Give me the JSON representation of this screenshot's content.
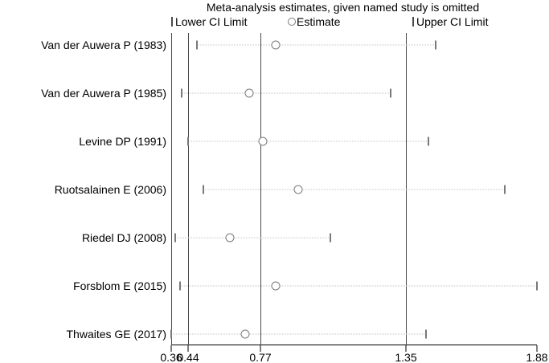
{
  "figure": {
    "legend": {
      "lower": "Lower CI Limit",
      "estimate": "Estimate",
      "upper": "Upper CI Limit"
    }
  },
  "chart_data": {
    "type": "scatter",
    "subtype": "meta-analysis leave-one-out sensitivity plot (estimate with CI limit ticks per omitted study)",
    "title": "Meta-analysis estimates, given named study is omitted",
    "xlabel": "",
    "ylabel": "",
    "legend_entries": [
      "Lower CI Limit",
      "Estimate",
      "Upper CI Limit"
    ],
    "legend_position": "top",
    "grid": false,
    "x_axis": {
      "range": [
        0.36,
        1.88
      ],
      "ticks": [
        0.36,
        0.44,
        0.77,
        1.35,
        1.88
      ],
      "tick_pos_pct": [
        31.19,
        34.26,
        47.44,
        73.94,
        97.8
      ]
    },
    "reference_lines": [
      0.44,
      0.77,
      1.35
    ],
    "studies": [
      {
        "label": "Van der Auwera P (1983)",
        "lower": 0.48,
        "estimate": 0.83,
        "upper": 1.47
      },
      {
        "label": "Van der Auwera P (1985)",
        "lower": 0.41,
        "estimate": 0.72,
        "upper": 1.29
      },
      {
        "label": "Levine DP (1991)",
        "lower": 0.44,
        "estimate": 0.78,
        "upper": 1.44
      },
      {
        "label": "Ruotsalainen E (2006)",
        "lower": 0.51,
        "estimate": 0.92,
        "upper": 1.75
      },
      {
        "label": "Riedel DJ (2008)",
        "lower": 0.38,
        "estimate": 0.63,
        "upper": 1.05
      },
      {
        "label": "Forsblom E (2015)",
        "lower": 0.4,
        "estimate": 0.83,
        "upper": 1.88
      },
      {
        "label": "Thwaites GE (2017)",
        "lower": 0.36,
        "estimate": 0.7,
        "upper": 1.43
      }
    ],
    "colors": {
      "background": "#ffffff",
      "text": "#000000",
      "axis": "#000000",
      "reference_line": "#4a4a4a",
      "ci_tick_marker": "#787878",
      "estimate_marker_outline": "#7a7a7a",
      "dotted_ci_line": "#c4c4c4"
    }
  }
}
